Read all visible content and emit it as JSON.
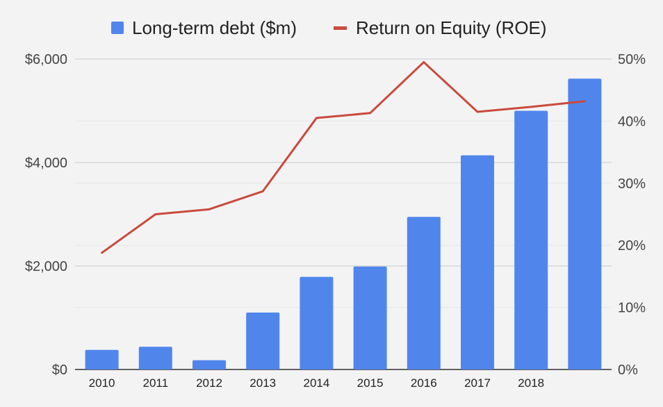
{
  "chart_data": {
    "type": "bar",
    "categories": [
      "2010",
      "2011",
      "2012",
      "2013",
      "2014",
      "2015",
      "2016",
      "2017",
      "2018",
      ""
    ],
    "series": [
      {
        "name": "Long-term debt ($m)",
        "type": "bar",
        "axis": "left",
        "color": "#5086ec",
        "values": [
          380,
          440,
          180,
          1100,
          1790,
          1990,
          2950,
          4140,
          5000,
          5620
        ]
      },
      {
        "name": "Return on Equity (ROE)",
        "type": "line",
        "axis": "right",
        "color": "#c94a3d",
        "values": [
          18.8,
          25.0,
          25.8,
          28.7,
          40.5,
          41.3,
          49.5,
          41.5,
          42.3,
          43.2
        ]
      }
    ],
    "y_left": {
      "range": [
        0,
        6000
      ],
      "ticks": [
        0,
        2000,
        4000,
        6000
      ],
      "tick_labels": [
        "$0",
        "$2,000",
        "$4,000",
        "$6,000"
      ]
    },
    "y_right": {
      "range": [
        0,
        50
      ],
      "ticks": [
        0,
        10,
        20,
        30,
        40,
        50
      ],
      "tick_labels": [
        "0%",
        "10%",
        "20%",
        "30%",
        "40%",
        "50%"
      ]
    },
    "grid": true,
    "legend_position": "top"
  }
}
